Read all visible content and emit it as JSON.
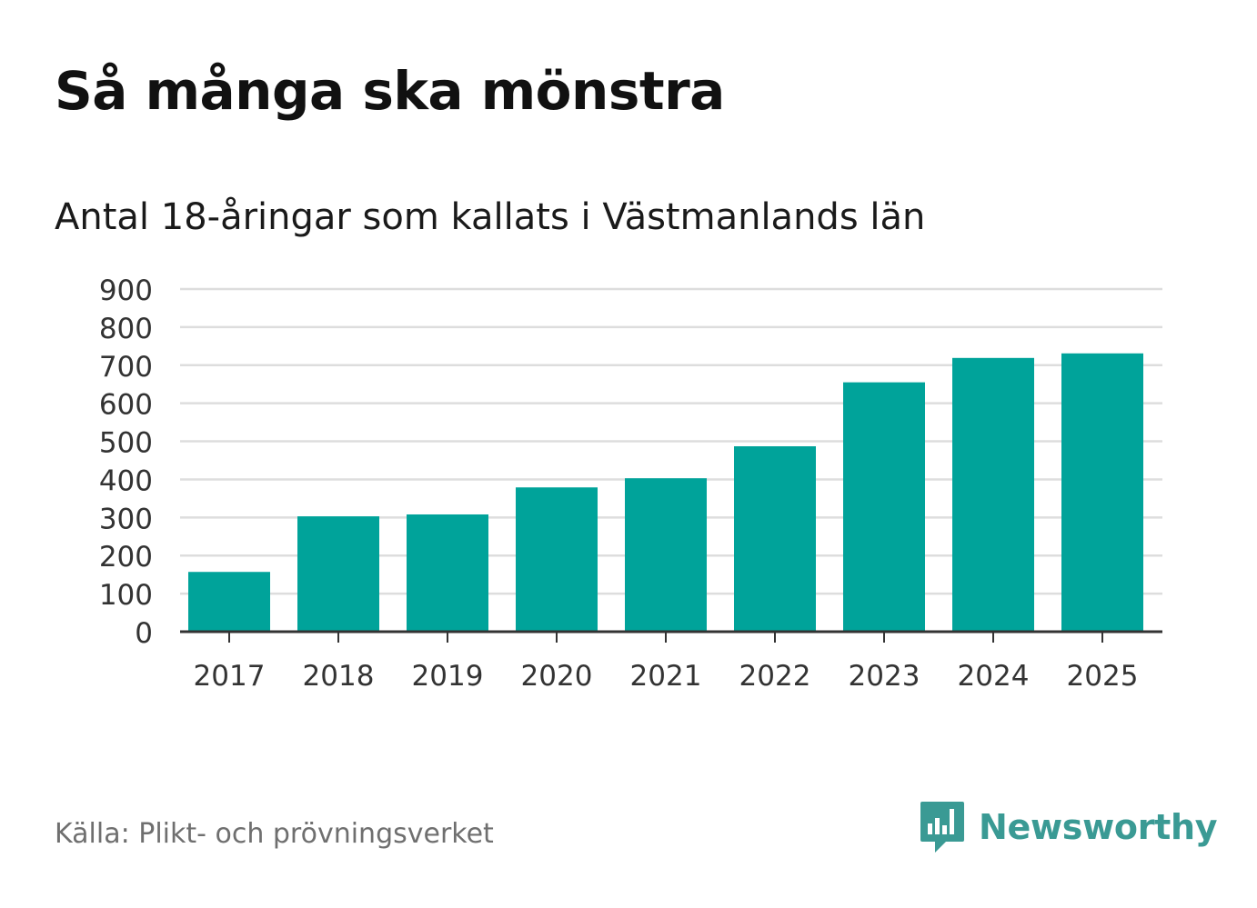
{
  "header": {
    "title": "Så många ska mönstra",
    "subtitle": "Antal 18-åringar som kallats i Västmanlands län"
  },
  "footer": {
    "source": "Källa: Plikt- och prövningsverket",
    "brand": "Newsworthy",
    "brand_icon": "newsworthy-logo-icon"
  },
  "colors": {
    "bar": "#00a39a",
    "grid": "#dddddd",
    "axis": "#333333",
    "brand": "#3a9a94"
  },
  "chart_data": {
    "type": "bar",
    "title": "Så många ska mönstra",
    "subtitle": "Antal 18-åringar som kallats i Västmanlands län",
    "xlabel": "",
    "ylabel": "",
    "categories": [
      "2017",
      "2018",
      "2019",
      "2020",
      "2021",
      "2022",
      "2023",
      "2024",
      "2025"
    ],
    "values": [
      157,
      303,
      308,
      379,
      403,
      487,
      655,
      719,
      731
    ],
    "ylim": [
      0,
      900
    ],
    "yticks": [
      0,
      100,
      200,
      300,
      400,
      500,
      600,
      700,
      800,
      900
    ],
    "grid": true,
    "legend": "none"
  }
}
